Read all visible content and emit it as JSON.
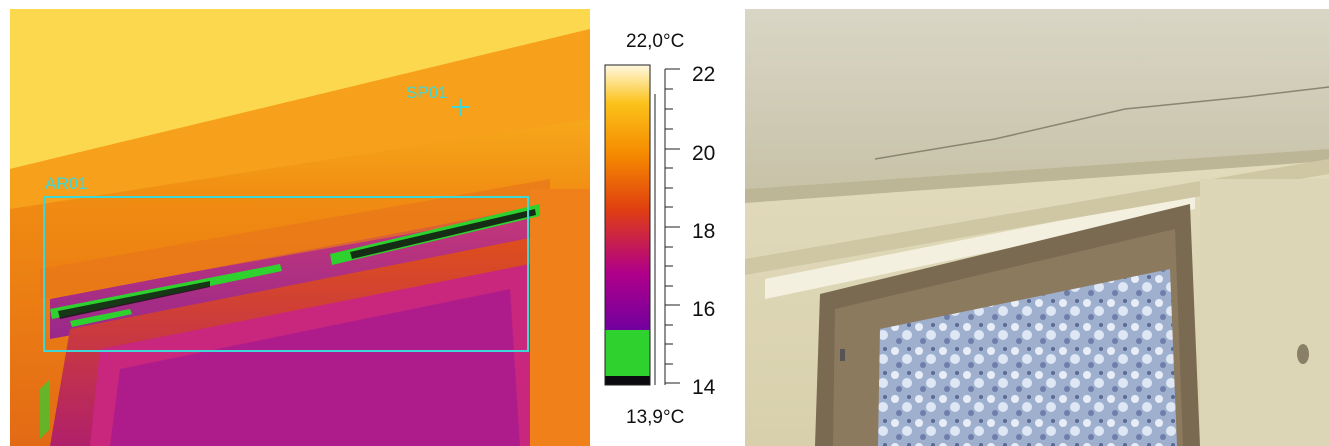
{
  "thermal_image": {
    "spot_label": "SP01",
    "area_label": "AR01",
    "overlay_color": "#3fd6d6",
    "palette": "iron",
    "isotherm_color": "#2fd12f"
  },
  "temperature_scale": {
    "max_label": "22,0°C",
    "min_label": "13,9°C",
    "ticks": [
      "22",
      "20",
      "18",
      "16",
      "14"
    ],
    "palette_stops": [
      "#1a0a2a",
      "#6a00a0",
      "#b0008a",
      "#e04010",
      "#f58a00",
      "#fbc21a",
      "#fff8e0"
    ]
  },
  "visual_photo": {
    "subject": "window-with-frost-and-ceiling"
  }
}
